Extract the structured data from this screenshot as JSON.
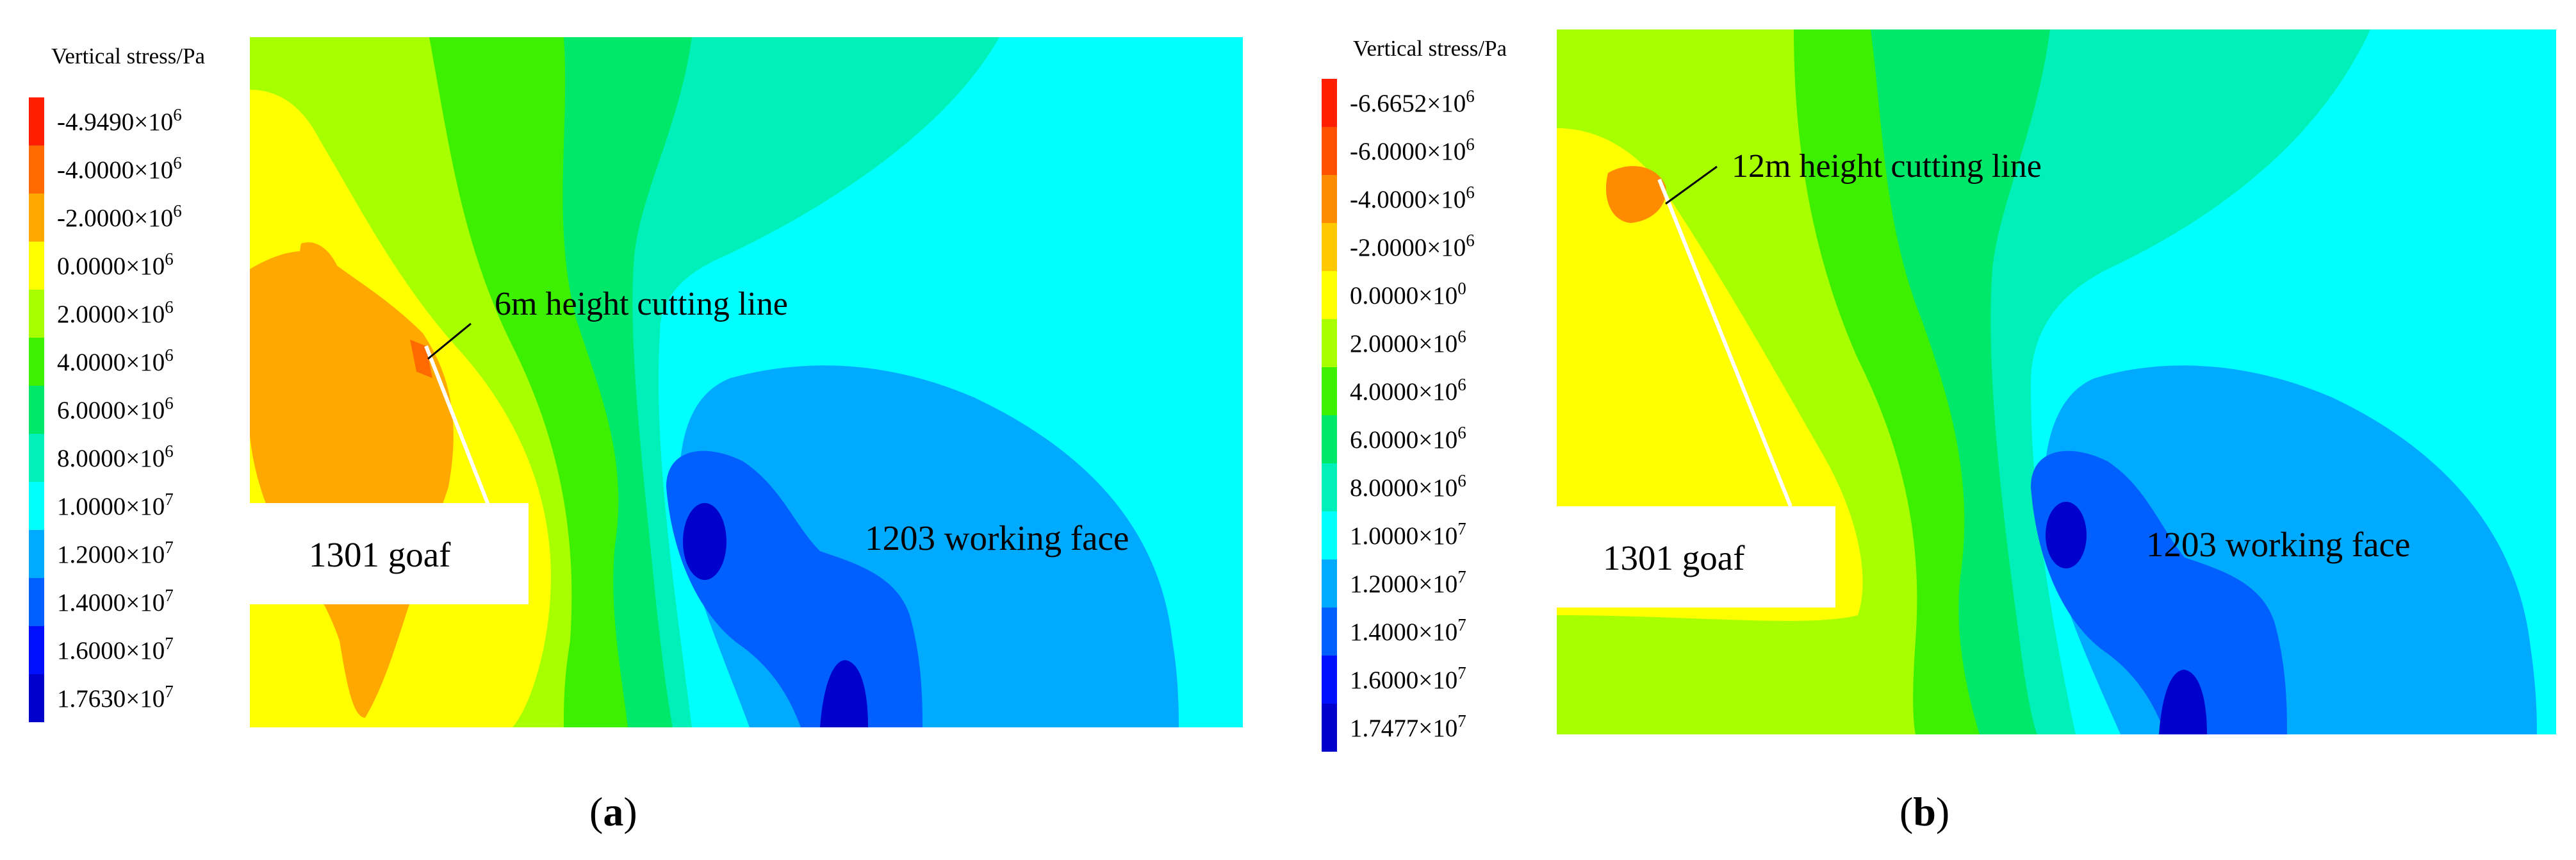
{
  "panels": [
    {
      "legend_title": "Vertical stress/Pa",
      "legend": [
        {
          "mant": "-4.9490×10",
          "exp": "6",
          "color": "#ff1e00"
        },
        {
          "mant": "-4.0000×10",
          "exp": "6",
          "color": "#ff6a00"
        },
        {
          "mant": "-2.0000×10",
          "exp": "6",
          "color": "#ffa800"
        },
        {
          "mant": "0.0000×10",
          "exp": "6",
          "color": "#ffff00"
        },
        {
          "mant": "2.0000×10",
          "exp": "6",
          "color": "#a8ff00"
        },
        {
          "mant": "4.0000×10",
          "exp": "6",
          "color": "#3cf000"
        },
        {
          "mant": "6.0000×10",
          "exp": "6",
          "color": "#00e86a"
        },
        {
          "mant": "8.0000×10",
          "exp": "6",
          "color": "#00f0ba"
        },
        {
          "mant": "1.0000×10",
          "exp": "7",
          "color": "#00ffff"
        },
        {
          "mant": "1.2000×10",
          "exp": "7",
          "color": "#00aaff"
        },
        {
          "mant": "1.4000×10",
          "exp": "7",
          "color": "#0060ff"
        },
        {
          "mant": "1.6000×10",
          "exp": "7",
          "color": "#0010ff"
        },
        {
          "mant": "1.7630×10",
          "exp": "7",
          "color": "#0000cc"
        }
      ],
      "goaf_label": "1301 goaf",
      "face_label": "1203 working face",
      "cut_label": "6m height cutting line",
      "caption_open": "(",
      "caption_letter": "a",
      "caption_close": ")"
    },
    {
      "legend_title": "Vertical stress/Pa",
      "legend": [
        {
          "mant": "-6.6652×10",
          "exp": "6",
          "color": "#ff1e00"
        },
        {
          "mant": "-6.0000×10",
          "exp": "6",
          "color": "#ff5000"
        },
        {
          "mant": "-4.0000×10",
          "exp": "6",
          "color": "#ff8c00"
        },
        {
          "mant": "-2.0000×10",
          "exp": "6",
          "color": "#ffc800"
        },
        {
          "mant": "0.0000×10",
          "exp": "0",
          "color": "#ffff00"
        },
        {
          "mant": "2.0000×10",
          "exp": "6",
          "color": "#a8ff00"
        },
        {
          "mant": "4.0000×10",
          "exp": "6",
          "color": "#3cf000"
        },
        {
          "mant": "6.0000×10",
          "exp": "6",
          "color": "#00e86a"
        },
        {
          "mant": "8.0000×10",
          "exp": "6",
          "color": "#00f0ba"
        },
        {
          "mant": "1.0000×10",
          "exp": "7",
          "color": "#00ffff"
        },
        {
          "mant": "1.2000×10",
          "exp": "7",
          "color": "#00aaff"
        },
        {
          "mant": "1.4000×10",
          "exp": "7",
          "color": "#0060ff"
        },
        {
          "mant": "1.6000×10",
          "exp": "7",
          "color": "#0010ff"
        },
        {
          "mant": "1.7477×10",
          "exp": "7",
          "color": "#0000cc"
        }
      ],
      "goaf_label": "1301 goaf",
      "face_label": "1203 working face",
      "cut_label": "12m height cutting line",
      "caption_open": "(",
      "caption_letter": "b",
      "caption_close": ")"
    }
  ]
}
